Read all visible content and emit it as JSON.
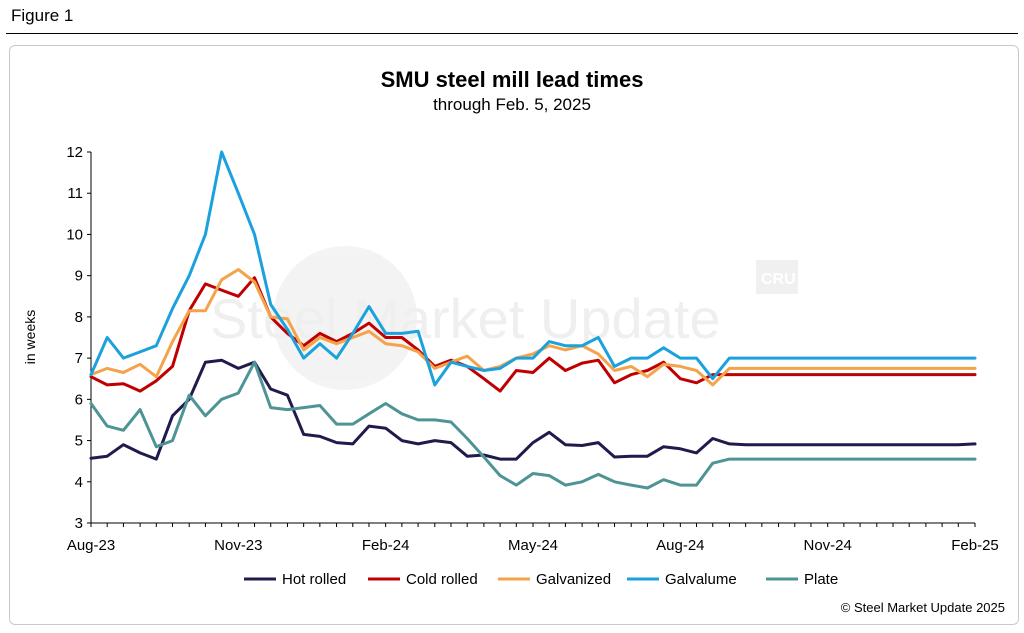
{
  "figure_label": "Figure 1",
  "watermark": {
    "text": "Steel Market Update",
    "logo_text": "CRU"
  },
  "copyright": "© Steel Market Update 2025",
  "chart_data": {
    "type": "line",
    "title": "SMU steel mill lead times",
    "subtitle": "through Feb. 5, 2025",
    "ylabel": "in weeks",
    "ylim": [
      3,
      12
    ],
    "yticks": [
      3,
      4,
      5,
      6,
      7,
      8,
      9,
      10,
      11,
      12
    ],
    "x_start": "Aug-23",
    "x_end": "Feb-25",
    "x_tick_labels": [
      "Aug-23",
      "Nov-23",
      "Feb-24",
      "May-24",
      "Aug-24",
      "Nov-24",
      "Feb-25"
    ],
    "x_tick_index": [
      0,
      3,
      6,
      9,
      12,
      15,
      18
    ],
    "x_months": [
      0,
      0.33,
      0.66,
      1.0,
      1.33,
      1.66,
      2.0,
      2.33,
      2.66,
      3.0,
      3.33,
      3.66,
      4.0,
      4.33,
      4.66,
      5.0,
      5.33,
      5.66,
      6.0,
      6.33,
      6.66,
      7.0,
      7.33,
      7.66,
      8.0,
      8.33,
      8.66,
      9.0,
      9.33,
      9.66,
      10.0,
      10.33,
      10.66,
      11.0,
      11.33,
      11.66,
      12.0,
      12.33,
      12.66,
      13.0,
      13.33,
      13.66,
      14.0,
      14.33,
      14.66,
      15.0,
      15.33,
      15.66,
      16.0,
      16.33,
      16.66,
      17.0,
      17.33,
      17.66,
      18.0
    ],
    "legend_position": "bottom",
    "grid": false,
    "series": [
      {
        "name": "Hot rolled",
        "color": "#1f1b4d",
        "values": [
          4.57,
          4.62,
          4.9,
          4.7,
          4.55,
          5.6,
          6.0,
          6.9,
          6.95,
          6.75,
          6.9,
          6.25,
          6.1,
          5.15,
          5.1,
          4.95,
          4.92,
          5.35,
          5.3,
          5.0,
          4.92,
          5.0,
          4.95,
          4.62,
          4.65,
          4.55,
          4.55,
          4.95,
          5.2,
          4.9,
          4.88,
          4.95,
          4.6,
          4.62,
          4.62,
          4.85,
          4.8,
          4.7,
          5.05,
          4.92,
          4.9,
          4.9,
          4.9,
          4.9,
          4.9,
          4.9,
          4.9,
          4.9,
          4.9,
          4.9,
          4.9,
          4.9,
          4.9,
          4.9,
          4.92
        ]
      },
      {
        "name": "Cold rolled",
        "color": "#c00000",
        "values": [
          6.55,
          6.35,
          6.38,
          6.2,
          6.45,
          6.8,
          8.15,
          8.8,
          8.65,
          8.5,
          8.95,
          8.0,
          7.6,
          7.3,
          7.6,
          7.4,
          7.6,
          7.85,
          7.5,
          7.5,
          7.2,
          6.8,
          6.95,
          6.8,
          6.5,
          6.2,
          6.7,
          6.65,
          7.0,
          6.7,
          6.88,
          6.95,
          6.4,
          6.6,
          6.7,
          6.9,
          6.5,
          6.4,
          6.6,
          6.6,
          6.6,
          6.6,
          6.6,
          6.6,
          6.6,
          6.6,
          6.6,
          6.6,
          6.6,
          6.6,
          6.6,
          6.6,
          6.6,
          6.6,
          6.6
        ]
      },
      {
        "name": "Galvanized",
        "color": "#f4a34a",
        "values": [
          6.6,
          6.75,
          6.65,
          6.85,
          6.55,
          7.4,
          8.15,
          8.15,
          8.9,
          9.15,
          8.85,
          8.0,
          7.95,
          7.2,
          7.5,
          7.35,
          7.5,
          7.65,
          7.35,
          7.3,
          7.15,
          6.75,
          6.9,
          7.05,
          6.7,
          6.8,
          7.0,
          7.1,
          7.3,
          7.2,
          7.3,
          7.1,
          6.7,
          6.8,
          6.55,
          6.85,
          6.8,
          6.7,
          6.35,
          6.75,
          6.75,
          6.75,
          6.75,
          6.75,
          6.75,
          6.75,
          6.75,
          6.75,
          6.75,
          6.75,
          6.75,
          6.75,
          6.75,
          6.75,
          6.75
        ]
      },
      {
        "name": "Galvalume",
        "color": "#1ba1dd",
        "values": [
          6.6,
          7.5,
          7.0,
          7.15,
          7.3,
          8.2,
          9.0,
          10.0,
          12.0,
          11.0,
          10.0,
          8.3,
          7.7,
          7.0,
          7.35,
          7.0,
          7.6,
          8.25,
          7.6,
          7.6,
          7.65,
          6.35,
          6.9,
          6.8,
          6.7,
          6.75,
          7.0,
          7.0,
          7.4,
          7.3,
          7.3,
          7.5,
          6.8,
          7.0,
          7.0,
          7.25,
          7.0,
          7.0,
          6.5,
          7.0,
          7.0,
          7.0,
          7.0,
          7.0,
          7.0,
          7.0,
          7.0,
          7.0,
          7.0,
          7.0,
          7.0,
          7.0,
          7.0,
          7.0,
          7.0
        ]
      },
      {
        "name": "Plate",
        "color": "#4f9495",
        "values": [
          5.9,
          5.35,
          5.25,
          5.75,
          4.85,
          5.0,
          6.1,
          5.6,
          6.0,
          6.15,
          6.9,
          5.8,
          5.75,
          5.8,
          5.85,
          5.4,
          5.4,
          5.65,
          5.9,
          5.65,
          5.5,
          5.5,
          5.45,
          5.05,
          4.6,
          4.15,
          3.92,
          4.2,
          4.15,
          3.92,
          4.0,
          4.18,
          4.0,
          3.92,
          3.85,
          4.05,
          3.92,
          3.92,
          4.45,
          4.55,
          4.55,
          4.55,
          4.55,
          4.55,
          4.55,
          4.55,
          4.55,
          4.55,
          4.55,
          4.55,
          4.55,
          4.55,
          4.55,
          4.55,
          4.55
        ]
      }
    ]
  }
}
